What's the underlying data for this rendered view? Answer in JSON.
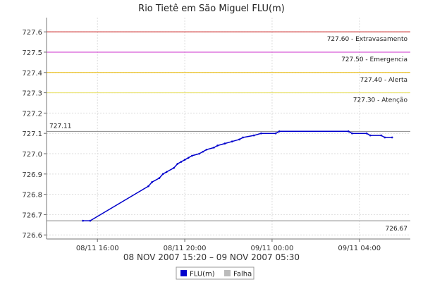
{
  "chart_data": {
    "type": "line",
    "title": "Rio Tietê em São Miguel FLU(m)",
    "date_range": "08 NOV 2007 15:20 – 09 NOV 2007 05:30",
    "y_axis": {
      "min": 726.58,
      "max": 727.67,
      "ticks": [
        "726.6",
        "726.7",
        "726.8",
        "726.9",
        "727.0",
        "727.1",
        "727.2",
        "727.3",
        "727.4",
        "727.5",
        "727.6"
      ]
    },
    "x_axis": {
      "start": "2007-11-08 15:20",
      "end": "2007-11-09 05:30",
      "ticks": [
        {
          "label": "08/11 16:00",
          "time": "2007-11-08 16:00"
        },
        {
          "label": "08/11 20:00",
          "time": "2007-11-08 20:00"
        },
        {
          "label": "09/11 00:00",
          "time": "2007-11-09 00:00"
        },
        {
          "label": "09/11 04:00",
          "time": "2007-11-09 04:00"
        }
      ]
    },
    "reference_lines": [
      {
        "value": 727.6,
        "label": "727.60 - Extravasamento",
        "color": "#cc2222"
      },
      {
        "value": 727.5,
        "label": "727.50 - Emergencia",
        "color": "#cc33cc"
      },
      {
        "value": 727.4,
        "label": "727.40 - Alerta",
        "color": "#e8b800"
      },
      {
        "value": 727.3,
        "label": "727.30 - Atenção",
        "color": "#e8e060"
      },
      {
        "value": 727.11,
        "label": "727.11",
        "color": "#888888"
      },
      {
        "value": 726.67,
        "label": "726.67",
        "color": "#888888"
      }
    ],
    "series": [
      {
        "name": "FLU(m)",
        "color": "#0000cc",
        "points": [
          [
            "2007-11-08 15:20",
            726.67
          ],
          [
            "2007-11-08 15:40",
            726.67
          ],
          [
            "2007-11-08 18:20",
            726.84
          ],
          [
            "2007-11-08 18:30",
            726.86
          ],
          [
            "2007-11-08 18:50",
            726.88
          ],
          [
            "2007-11-08 19:00",
            726.9
          ],
          [
            "2007-11-08 19:10",
            726.91
          ],
          [
            "2007-11-08 19:30",
            726.93
          ],
          [
            "2007-11-08 19:40",
            726.95
          ],
          [
            "2007-11-08 19:50",
            726.96
          ],
          [
            "2007-11-08 20:00",
            726.97
          ],
          [
            "2007-11-08 20:10",
            726.98
          ],
          [
            "2007-11-08 20:20",
            726.99
          ],
          [
            "2007-11-08 20:40",
            727.0
          ],
          [
            "2007-11-08 20:50",
            727.01
          ],
          [
            "2007-11-08 21:00",
            727.02
          ],
          [
            "2007-11-08 21:20",
            727.03
          ],
          [
            "2007-11-08 21:30",
            727.04
          ],
          [
            "2007-11-08 21:50",
            727.05
          ],
          [
            "2007-11-08 22:10",
            727.06
          ],
          [
            "2007-11-08 22:30",
            727.07
          ],
          [
            "2007-11-08 22:40",
            727.08
          ],
          [
            "2007-11-08 23:10",
            727.09
          ],
          [
            "2007-11-08 23:30",
            727.1
          ],
          [
            "2007-11-09 00:10",
            727.1
          ],
          [
            "2007-11-09 00:20",
            727.11
          ],
          [
            "2007-11-09 03:30",
            727.11
          ],
          [
            "2007-11-09 03:40",
            727.1
          ],
          [
            "2007-11-09 04:20",
            727.1
          ],
          [
            "2007-11-09 04:30",
            727.09
          ],
          [
            "2007-11-09 05:00",
            727.09
          ],
          [
            "2007-11-09 05:10",
            727.08
          ],
          [
            "2007-11-09 05:30",
            727.08
          ]
        ]
      },
      {
        "name": "Falha",
        "color": "#bbbbbb",
        "points": [
          [
            "2007-11-08 15:40",
            726.67
          ],
          [
            "2007-11-08 18:20",
            726.84
          ]
        ]
      }
    ],
    "legend": [
      {
        "label": "FLU(m)",
        "color": "#0000cc"
      },
      {
        "label": "Falha",
        "color": "#bbbbbb"
      }
    ],
    "grid": true,
    "legend_position": "bottom"
  }
}
